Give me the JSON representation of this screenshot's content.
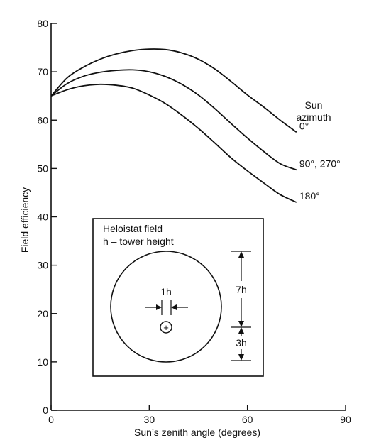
{
  "chart_data": {
    "type": "line",
    "xlabel": "Sun’s zenith angle (degrees)",
    "ylabel": "Field efficiency",
    "xlim": [
      0,
      90
    ],
    "ylim": [
      0,
      80
    ],
    "xticks": [
      0,
      30,
      60,
      90
    ],
    "yticks": [
      0,
      10,
      20,
      30,
      40,
      50,
      60,
      70,
      80
    ],
    "xtick_labels": [
      "0",
      "30",
      "60",
      "90"
    ],
    "ytick_labels": [
      "0",
      "10",
      "20",
      "30",
      "40",
      "50",
      "60",
      "70",
      "80"
    ],
    "grid": false,
    "legend_title": "Sun\nazimuth",
    "series": [
      {
        "name": "0°",
        "x": [
          0,
          5,
          10,
          15,
          20,
          25,
          30,
          35,
          40,
          45,
          50,
          55,
          60,
          65,
          70,
          75
        ],
        "y": [
          65,
          68.8,
          71.0,
          72.6,
          73.7,
          74.4,
          74.7,
          74.6,
          73.9,
          72.6,
          70.6,
          68.0,
          65.2,
          62.7,
          60.0,
          57.5
        ]
      },
      {
        "name": "90°, 270°",
        "x": [
          0,
          5,
          10,
          15,
          20,
          25,
          30,
          35,
          40,
          45,
          50,
          55,
          60,
          65,
          70,
          75
        ],
        "y": [
          65,
          67.6,
          69.1,
          69.9,
          70.3,
          70.4,
          70.0,
          69.0,
          67.4,
          65.2,
          62.4,
          59.3,
          56.3,
          53.5,
          51.0,
          49.7
        ]
      },
      {
        "name": "180°",
        "x": [
          0,
          5,
          10,
          15,
          20,
          25,
          30,
          35,
          40,
          45,
          50,
          55,
          60,
          65,
          70,
          75
        ],
        "y": [
          65,
          66.3,
          67.1,
          67.4,
          67.2,
          66.6,
          65.2,
          63.4,
          61.0,
          58.3,
          55.3,
          52.2,
          49.5,
          47.0,
          44.6,
          43.0
        ]
      }
    ],
    "inset": {
      "title": "Heloistat field",
      "subtitle": "h – tower height",
      "spacing_label": "1h",
      "upper_dimension": "7h",
      "lower_dimension": "3h",
      "tower_symbol": "+"
    }
  }
}
